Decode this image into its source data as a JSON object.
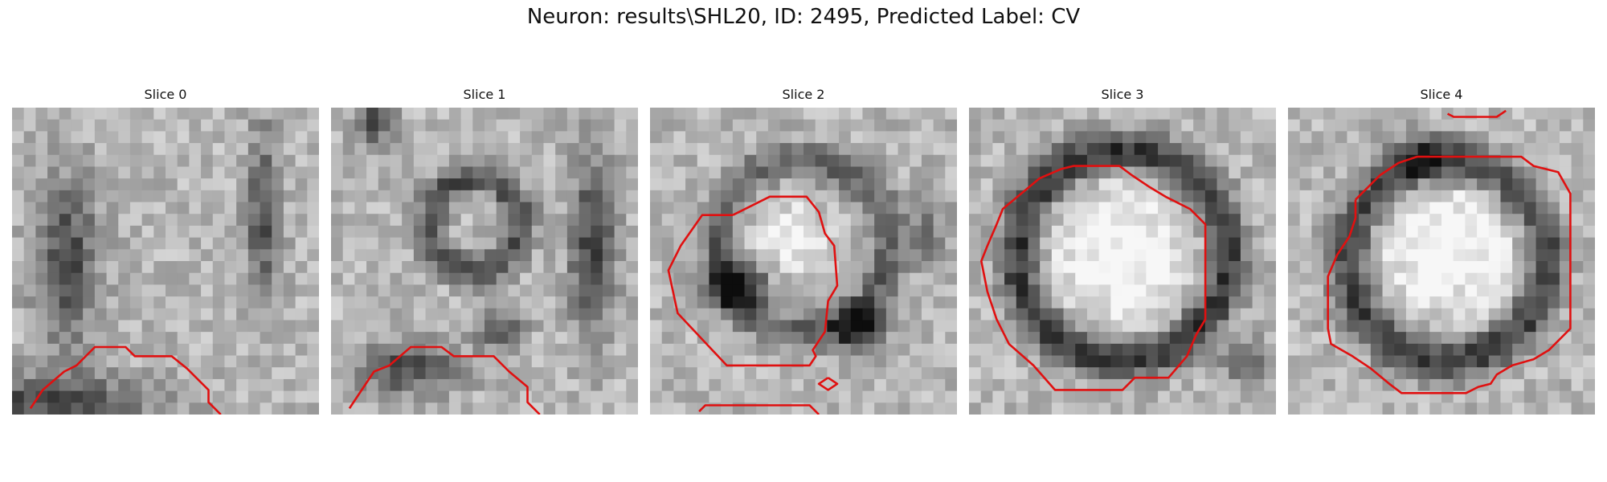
{
  "figure": {
    "title": "Neuron: results\\SHL20, ID: 2495, Predicted Label: CV"
  },
  "panels": [
    {
      "title": "Slice 0"
    },
    {
      "title": "Slice 1"
    },
    {
      "title": "Slice 2"
    },
    {
      "title": "Slice 3"
    },
    {
      "title": "Slice 4"
    }
  ],
  "colors": {
    "contour": "#e01010",
    "background": "#ffffff"
  }
}
